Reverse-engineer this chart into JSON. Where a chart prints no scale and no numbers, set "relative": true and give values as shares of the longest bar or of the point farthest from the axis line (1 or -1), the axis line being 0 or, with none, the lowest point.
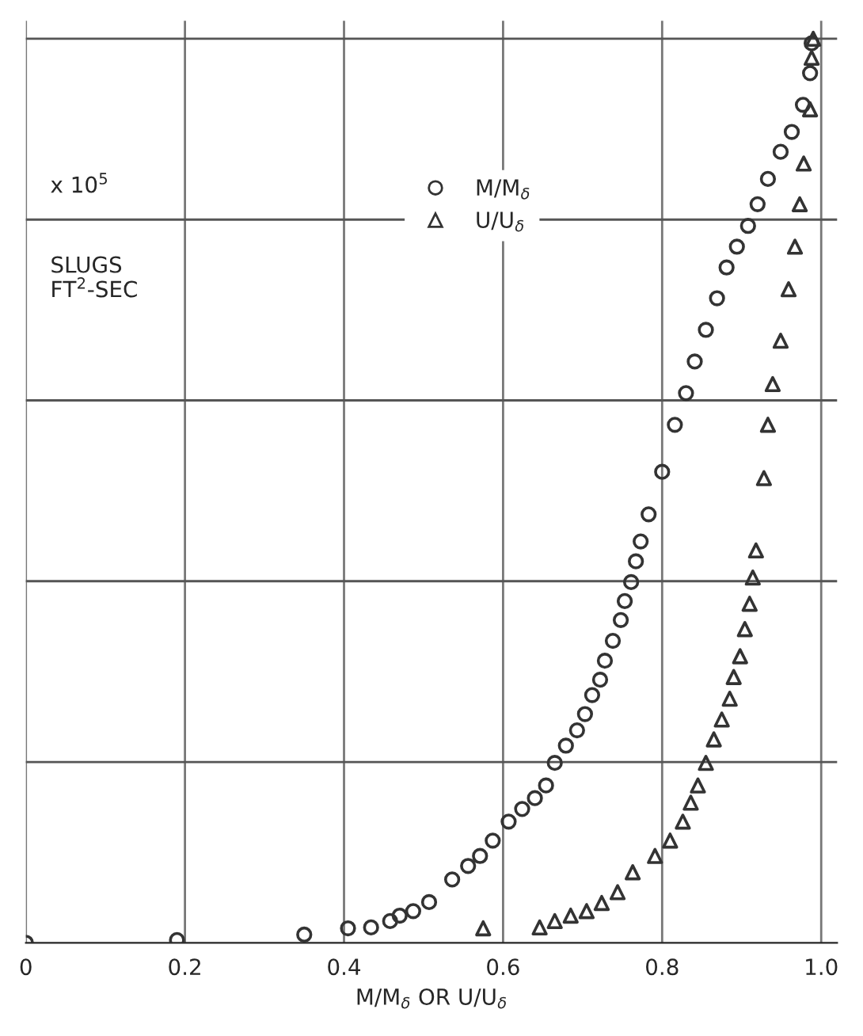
{
  "chart_data": {
    "type": "scatter",
    "relative": true,
    "xlabel": "M/M$_{δ}$ OR U/U$_{δ}$",
    "annotations": [
      "x 10$^{5}$",
      "SLUGS\nFT$^{2}$-SEC"
    ],
    "xlim": [
      0,
      1.02
    ],
    "xticks": [
      0,
      0.2,
      0.4,
      0.6,
      0.8,
      {
        "value": 1.0,
        "label": "1.0"
      }
    ],
    "grid": "x",
    "legend": "top",
    "ref_lines": [
      {
        "axis": "y",
        "value": 0.2
      },
      {
        "axis": "y",
        "value": 0.4
      },
      {
        "axis": "y",
        "value": 0.6
      },
      {
        "axis": "y",
        "value": 0.8
      },
      {
        "axis": "y",
        "value": 1.0
      }
    ],
    "series": [
      {
        "name": "M/M$_{δ}$",
        "color": "#333333",
        "marker": "circle",
        "x": [
          0,
          0.19,
          0.35,
          0.405,
          0.434,
          0.458,
          0.47,
          0.487,
          0.507,
          0.536,
          0.556,
          0.571,
          0.587,
          0.607,
          0.624,
          0.64,
          0.654,
          0.665,
          0.679,
          0.693,
          0.703,
          0.712,
          0.722,
          0.728,
          0.738,
          0.748,
          0.753,
          0.761,
          0.767,
          0.773,
          0.783,
          0.8,
          0.816,
          0.83,
          0.841,
          0.855,
          0.869,
          0.881,
          0.894,
          0.908,
          0.92,
          0.933,
          0.949,
          0.963,
          0.977,
          0.986,
          0.988
        ],
        "values": [
          0,
          0.003,
          0.009,
          0.016,
          0.017,
          0.024,
          0.03,
          0.035,
          0.045,
          0.07,
          0.085,
          0.096,
          0.113,
          0.134,
          0.148,
          0.16,
          0.174,
          0.199,
          0.218,
          0.235,
          0.253,
          0.274,
          0.291,
          0.312,
          0.334,
          0.357,
          0.378,
          0.399,
          0.422,
          0.444,
          0.474,
          0.521,
          0.573,
          0.608,
          0.643,
          0.678,
          0.713,
          0.747,
          0.77,
          0.793,
          0.817,
          0.845,
          0.875,
          0.897,
          0.927,
          0.962,
          0.995
        ]
      },
      {
        "name": "U/U$_{δ}$",
        "color": "#333333",
        "marker": "triangle",
        "x": [
          0.575,
          0.646,
          0.665,
          0.685,
          0.705,
          0.724,
          0.744,
          0.763,
          0.791,
          0.81,
          0.826,
          0.836,
          0.845,
          0.855,
          0.865,
          0.875,
          0.885,
          0.89,
          0.898,
          0.904,
          0.91,
          0.914,
          0.918,
          0.928,
          0.933,
          0.939,
          0.949,
          0.959,
          0.967,
          0.973,
          0.978,
          0.986,
          0.988,
          0.99
        ],
        "values": [
          0.016,
          0.017,
          0.024,
          0.03,
          0.035,
          0.044,
          0.056,
          0.078,
          0.096,
          0.113,
          0.134,
          0.155,
          0.174,
          0.199,
          0.225,
          0.247,
          0.27,
          0.294,
          0.317,
          0.347,
          0.375,
          0.404,
          0.434,
          0.514,
          0.573,
          0.618,
          0.666,
          0.723,
          0.77,
          0.817,
          0.862,
          0.922,
          0.979,
          1.0
        ]
      }
    ]
  }
}
